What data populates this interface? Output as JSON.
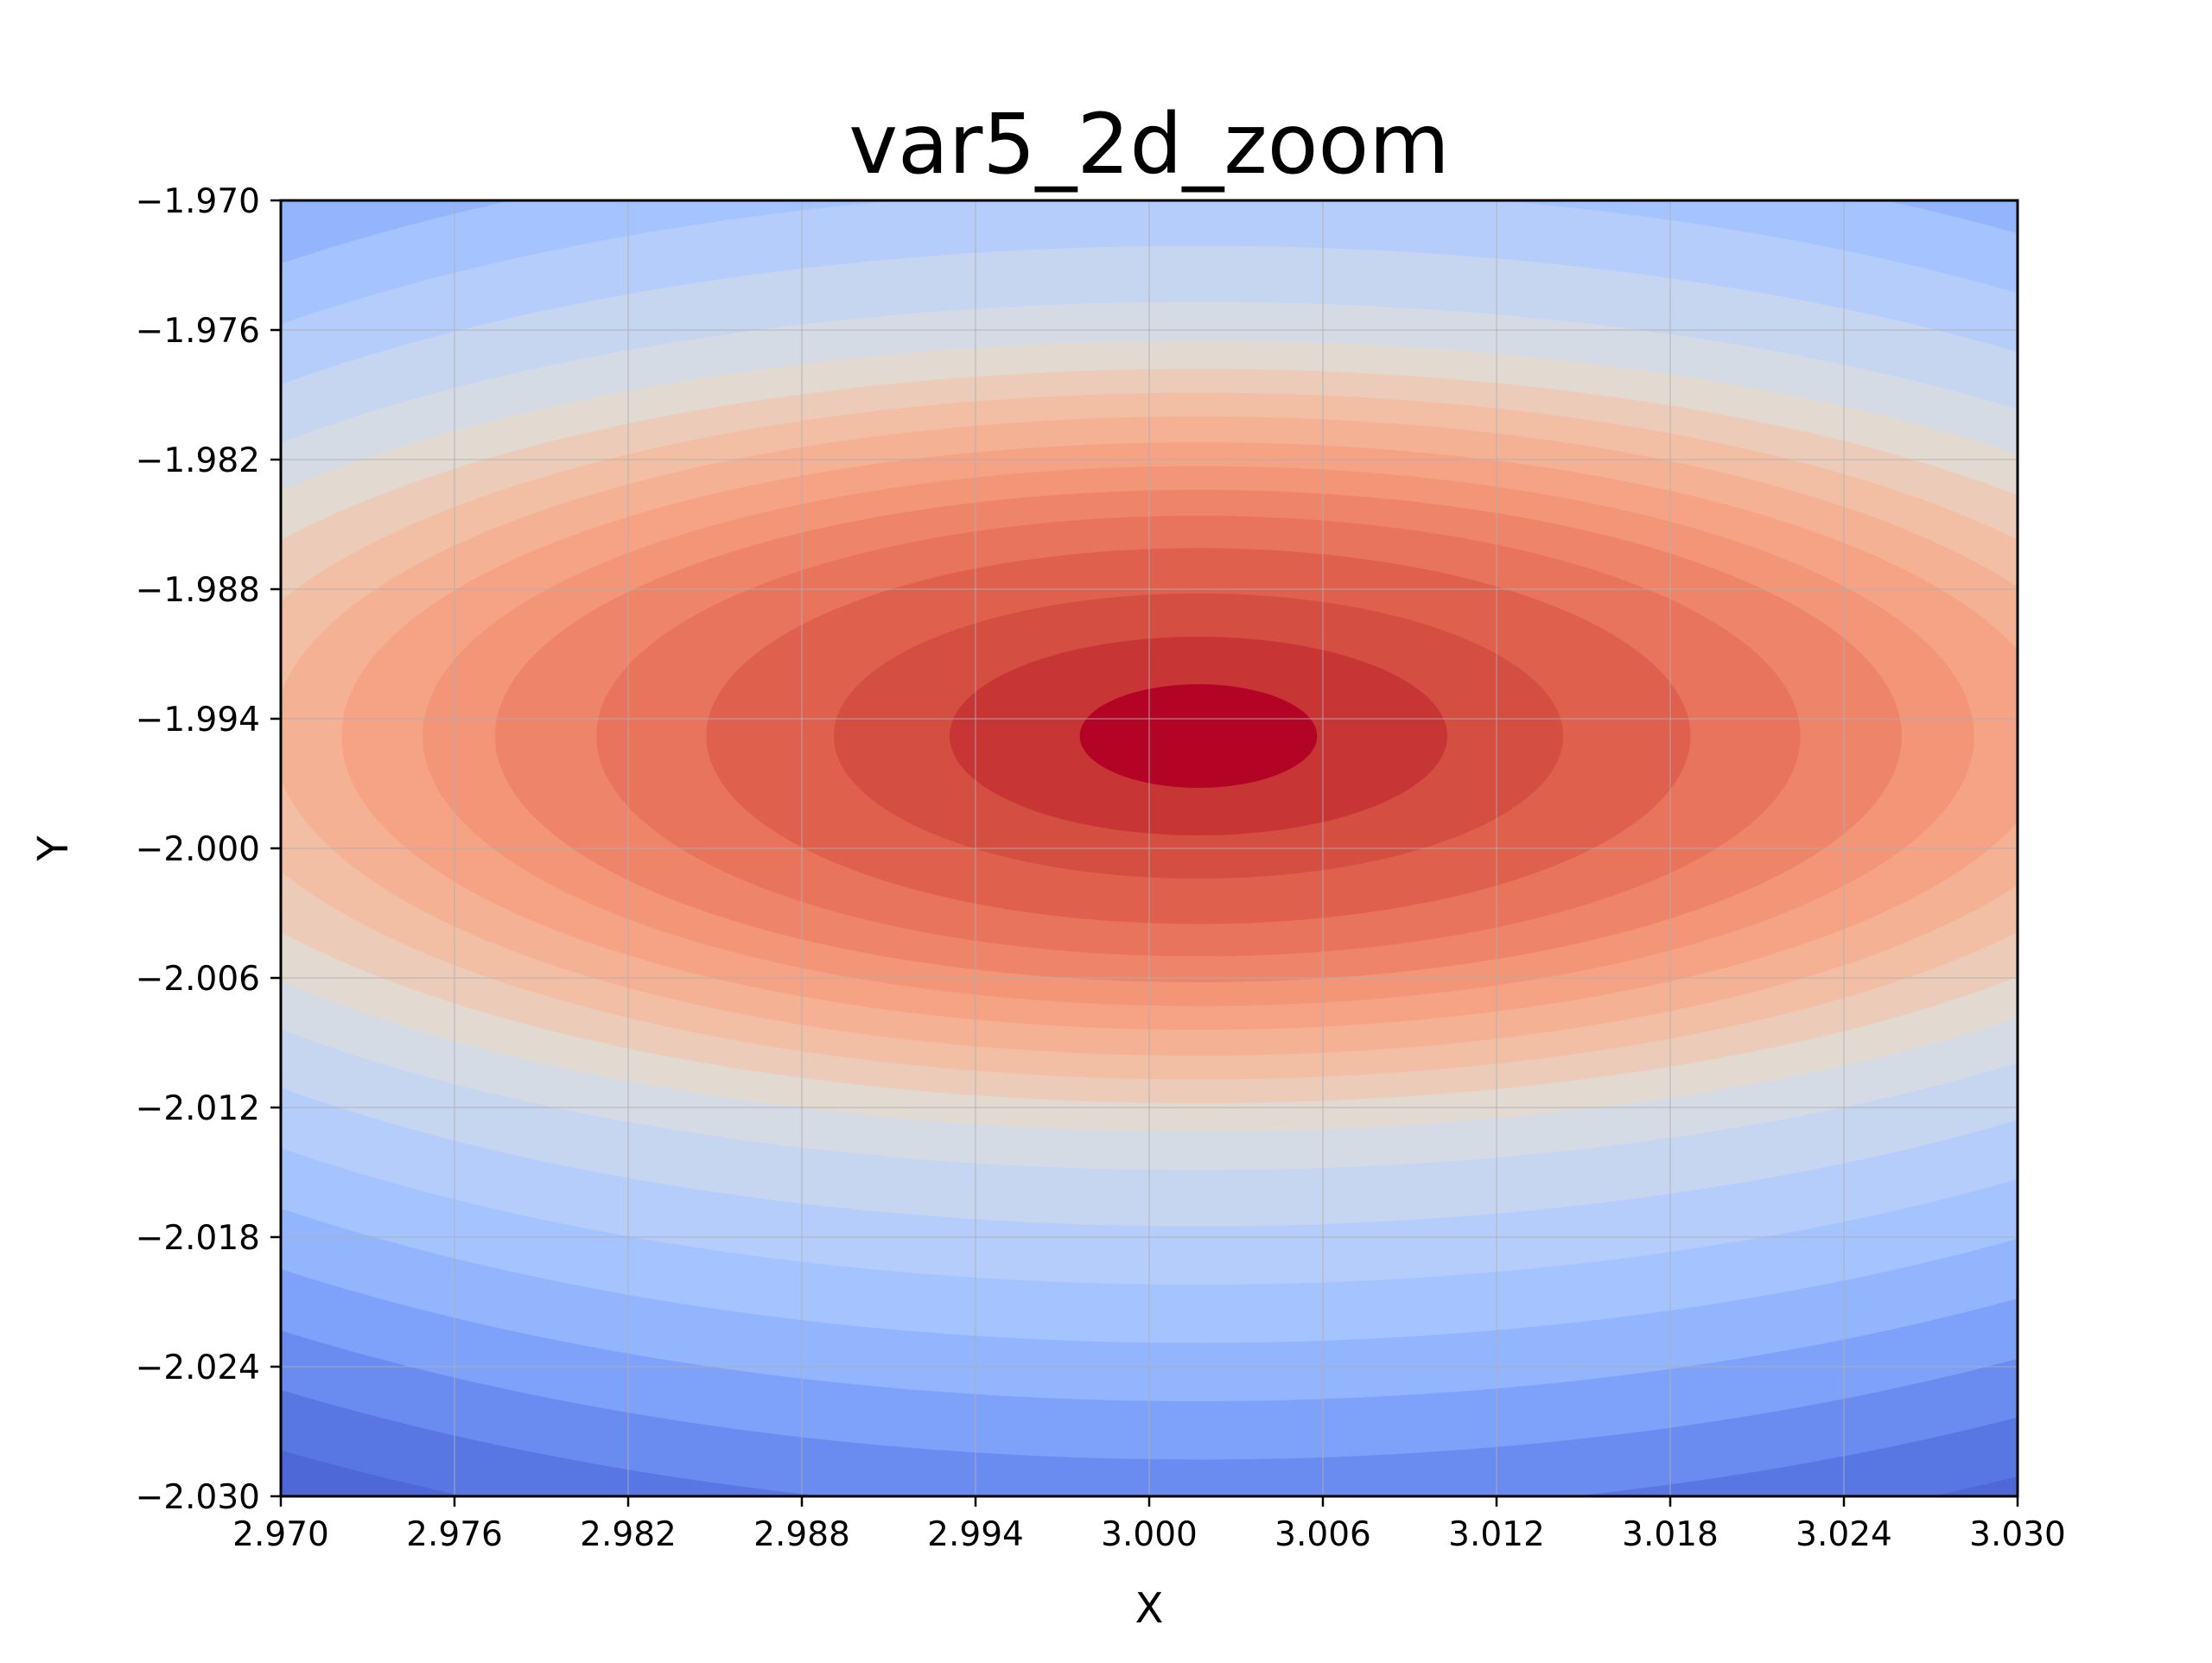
{
  "chart_data": {
    "type": "heatmap",
    "subtype": "filled-contour",
    "title": "var5_2d_zoom",
    "xlabel": "X",
    "ylabel": "Y",
    "xlim": [
      2.97,
      3.03
    ],
    "ylim": [
      -2.03,
      -1.97
    ],
    "x_ticks": [
      "2.970",
      "2.976",
      "2.982",
      "2.988",
      "2.994",
      "3.000",
      "3.006",
      "3.012",
      "3.018",
      "3.024",
      "3.030"
    ],
    "y_ticks": [
      "−1.970",
      "−1.976",
      "−1.982",
      "−1.988",
      "−1.994",
      "−2.000",
      "−2.006",
      "−2.012",
      "−2.018",
      "−2.024",
      "−2.030"
    ],
    "grid": true,
    "colormap": "coolwarm",
    "peak": {
      "x": 3.0017,
      "y": -1.9948
    },
    "contour_levels": 20,
    "level_semi_axes": [
      [
        0.0041,
        0.0024
      ],
      [
        0.0086,
        0.0046
      ],
      [
        0.0126,
        0.0066
      ],
      [
        0.017,
        0.0087
      ],
      [
        0.0208,
        0.0102
      ],
      [
        0.0243,
        0.0114
      ],
      [
        0.0268,
        0.0125
      ],
      [
        0.0296,
        0.0136
      ],
      [
        0.032,
        0.0148
      ],
      [
        0.0345,
        0.0159
      ],
      [
        0.0375,
        0.017
      ],
      [
        0.0404,
        0.0183
      ],
      [
        0.043,
        0.0201
      ],
      [
        0.0455,
        0.0227
      ],
      [
        0.048,
        0.0254
      ],
      [
        0.0505,
        0.0281
      ],
      [
        0.053,
        0.0308
      ],
      [
        0.0556,
        0.0335
      ],
      [
        0.0582,
        0.0361
      ],
      [
        0.061,
        0.0387
      ]
    ],
    "level_colors": [
      "#b40426",
      "#c73635",
      "#d44e41",
      "#de604d",
      "#e7745b",
      "#ee8468",
      "#f39577",
      "#f6a385",
      "#f5b194",
      "#f2bfa5",
      "#ecccb9",
      "#e2d9d0",
      "#d5dbe5",
      "#c6d6f1",
      "#b5cdfa",
      "#a5c3fe",
      "#93b5fe",
      "#7ea1f9",
      "#6a8bef",
      "#5977e3"
    ],
    "background_color": "#4e68d8"
  }
}
